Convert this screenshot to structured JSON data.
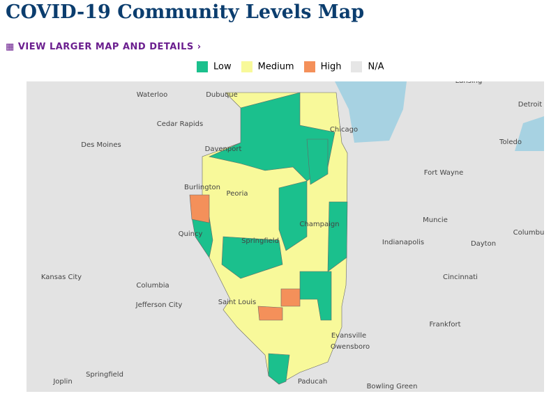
{
  "header": {
    "title": "COVID-19 Community Levels Map",
    "link": "VIEW LARGER MAP AND DETAILS ›"
  },
  "legend": [
    {
      "name": "Low",
      "color": "#1bc08d"
    },
    {
      "name": "Medium",
      "color": "#f8f99a"
    },
    {
      "name": "High",
      "color": "#f4905a"
    },
    {
      "name": "N/A",
      "color": "#e6e6e6"
    }
  ],
  "map": {
    "places": [
      "Waterloo",
      "Dubuque",
      "Lansing",
      "Detroit",
      "Cedar Rapids",
      "Chicago",
      "Des Moines",
      "Davenport",
      "Toledo",
      "Fort Wayne",
      "Burlington",
      "Peoria",
      "Muncie",
      "Champaign",
      "Quincy",
      "Columbu",
      "Springfield",
      "Indianapolis",
      "Dayton",
      "Kansas City",
      "Columbia",
      "Cincinnati",
      "Jefferson City",
      "Saint Louis",
      "Frankfort",
      "Evansville",
      "Owensboro",
      "Springfield",
      "Joplin",
      "Paducah",
      "Bowling Green"
    ]
  }
}
